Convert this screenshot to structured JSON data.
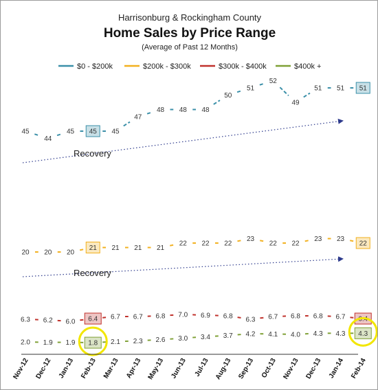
{
  "chart_data": {
    "type": "line",
    "title_line1": "Harrisonburg & Rockingham County",
    "title": "Home Sales by Price Range",
    "subtitle": "(Average of Past 12 Months)",
    "categories": [
      "Nov-12",
      "Dec-12",
      "Jan-13",
      "Feb-13",
      "Mar-13",
      "Apr-13",
      "May-13",
      "Jun-13",
      "Jul-13",
      "Aug-13",
      "Sep-13",
      "Oct-13",
      "Nov-13",
      "Dec-13",
      "Jan-14",
      "Feb-14"
    ],
    "series": [
      {
        "name": "$0 - $200k",
        "color": "#3a8fa8",
        "values": [
          45,
          44,
          45,
          45,
          45,
          47,
          48,
          48,
          48,
          50,
          51,
          52,
          49,
          51,
          51,
          51
        ],
        "highlight": [
          3,
          15
        ]
      },
      {
        "name": "$200k - $300k",
        "color": "#f2b01e",
        "values": [
          20,
          20,
          20,
          21,
          21,
          21,
          21,
          22,
          22,
          22,
          23,
          22,
          22,
          23,
          23,
          22
        ],
        "highlight": [
          3,
          15
        ]
      },
      {
        "name": "$300k - $400k",
        "color": "#c0312b",
        "values": [
          6.3,
          6.2,
          6.0,
          6.4,
          6.7,
          6.7,
          6.8,
          7.0,
          6.9,
          6.8,
          6.3,
          6.7,
          6.8,
          6.8,
          6.7,
          6.4
        ],
        "highlight": [
          3,
          15
        ]
      },
      {
        "name": "$400k +",
        "color": "#7fa035",
        "values": [
          2.0,
          1.9,
          1.9,
          1.8,
          2.1,
          2.3,
          2.6,
          3.0,
          3.4,
          3.7,
          4.2,
          4.1,
          4.0,
          4.3,
          4.3,
          4.3
        ],
        "highlight": [
          3,
          15
        ]
      }
    ],
    "annotations": [
      {
        "text": "Recovery"
      },
      {
        "text": "Recovery"
      }
    ],
    "circled_points": [
      {
        "series": 3,
        "index": 3
      },
      {
        "series": 3,
        "index": 15
      }
    ],
    "legend_position": "top",
    "grid": false
  }
}
